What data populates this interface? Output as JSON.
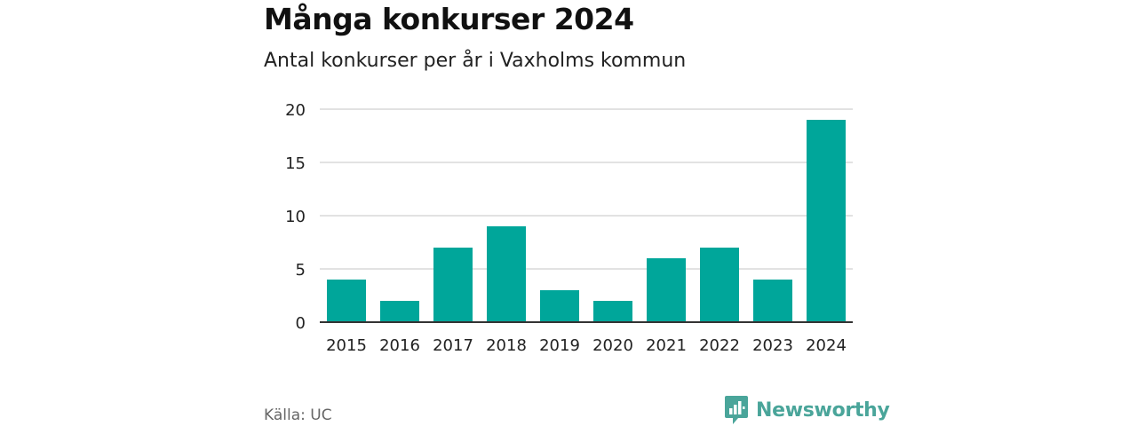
{
  "title": "Många konkurser 2024",
  "subtitle": "Antal konkurser per år i Vaxholms kommun",
  "source": "Källa: UC",
  "brand": "Newsworthy",
  "colors": {
    "bar": "#00a69a",
    "grid": "#d9d9d9",
    "axis": "#333333",
    "brand": "#4aa59a"
  },
  "chart_data": {
    "type": "bar",
    "categories": [
      "2015",
      "2016",
      "2017",
      "2018",
      "2019",
      "2020",
      "2021",
      "2022",
      "2023",
      "2024"
    ],
    "values": [
      4,
      2,
      7,
      9,
      3,
      2,
      6,
      7,
      4,
      19
    ],
    "ylim": [
      0,
      20
    ],
    "yticks": [
      0,
      5,
      10,
      15,
      20
    ],
    "grid": true,
    "legend": false
  }
}
